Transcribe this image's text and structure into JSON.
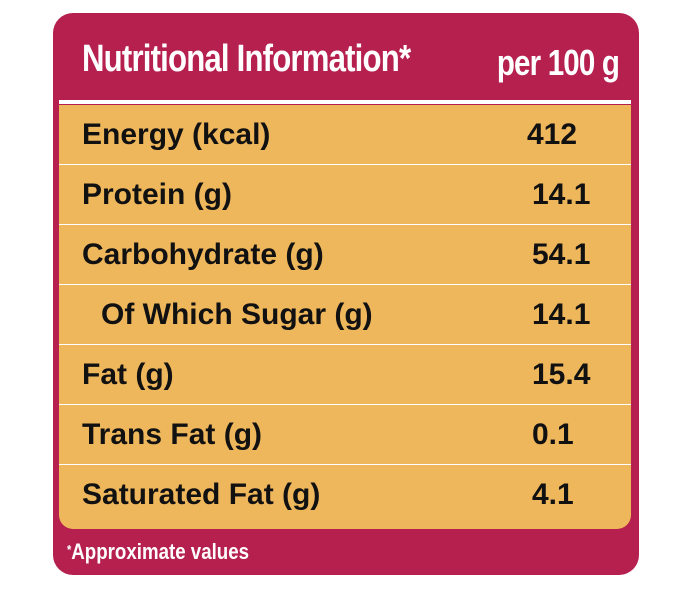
{
  "header": {
    "title": "Nutritional Information*",
    "per": "per 100 g"
  },
  "rows": [
    {
      "label": "Energy (kcal)",
      "value": "412"
    },
    {
      "label": "Protein (g)",
      "value": "14.1"
    },
    {
      "label": "Carbohydrate (g)",
      "value": "54.1"
    },
    {
      "label": "Of Which Sugar (g)",
      "value": "14.1"
    },
    {
      "label": "Fat (g)",
      "value": "15.4"
    },
    {
      "label": "Trans Fat (g)",
      "value": "0.1"
    },
    {
      "label": "Saturated Fat (g)",
      "value": "4.1"
    }
  ],
  "footnote": {
    "marker": "*",
    "text": "Approximate values"
  },
  "colors": {
    "frame": "#b5204f",
    "table": "#efb75c",
    "divider": "#ffffff"
  }
}
